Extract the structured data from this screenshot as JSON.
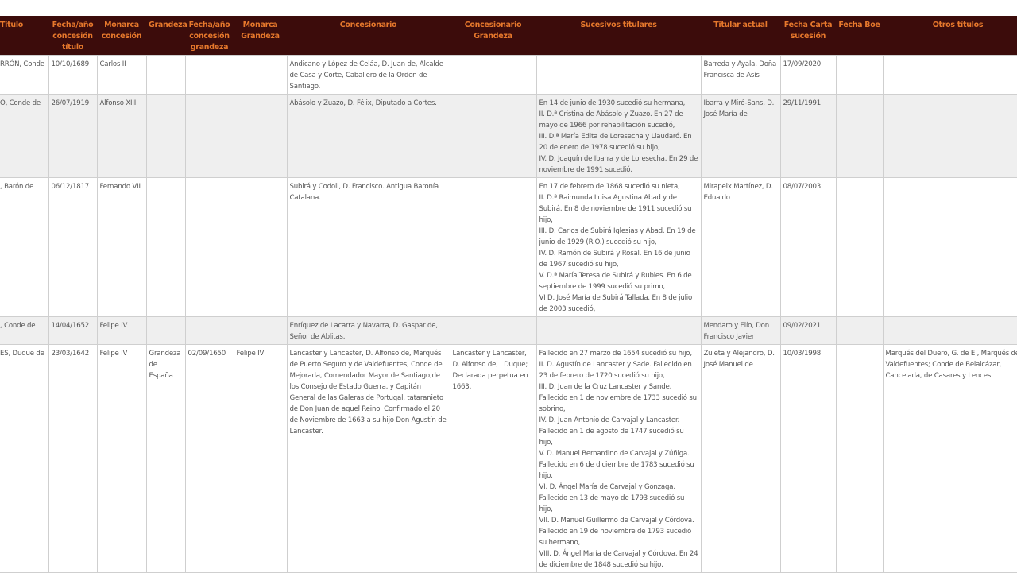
{
  "colors": {
    "header_bg": "#3c0c0b",
    "header_text": "#e6782c",
    "row_alt": "#efefef"
  },
  "headers": [
    "Título",
    "Fecha/año concesión título",
    "Monarca concesión",
    "Grandeza",
    "Fecha/año concesión grandeza",
    "Monarca Grandeza",
    "Concesionario",
    "Concesionario Grandeza",
    "Sucesivos titulares",
    "Titular actual",
    "Fecha Carta sucesión",
    "Fecha Boe",
    "Otros títulos"
  ],
  "rows": [
    [
      "RRÓN, Conde",
      "10/10/1689",
      "Carlos II",
      "",
      "",
      "",
      "Andicano y López de Celáa, D. Juan de, Alcalde de Casa y Corte, Caballero de la Orden de Santiago.",
      "",
      "",
      "Barreda y Ayala, Doña Francisca de Asís",
      "17/09/2020",
      "",
      ""
    ],
    [
      "O, Conde de",
      "26/07/1919",
      "Alfonso XIII",
      "",
      "",
      "",
      "Abásolo y Zuazo, D. Félix, Diputado a Cortes.",
      "",
      "En 14 de junio de 1930 sucedió su hermana,\nII. D.ª Cristina de Abásolo y Zuazo. En 27 de mayo de 1966 por rehabilitación sucedió,\nIII. D.ª María Edita de Loresecha y Llaudaró. En 20 de enero de 1978 sucedió su hijo,\nIV. D. Joaquín de Ibarra y de Loresecha. En 29 de noviembre de 1991 sucedió,",
      "Ibarra y Miró-Sans, D. José María de",
      "29/11/1991",
      "",
      ""
    ],
    [
      ", Barón de",
      "06/12/1817",
      "Fernando VII",
      "",
      "",
      "",
      "Subirá y Codoll, D. Francisco. Antigua Baronía Catalana.",
      "",
      "En 17 de febrero de 1868 sucedió su nieta,\nII. D.ª Raimunda Luisa Agustina Abad y de Subirá. En 8 de noviembre de 1911 sucedió su hijo,\nIII. D. Carlos de Subirá Iglesias y Abad. En 19 de junio de 1929 (R.O.) sucedió su hijo,\nIV. D. Ramón de Subirá y Rosal. En 16 de junio de 1967 sucedió su hijo,\nV. D.ª María Teresa de Subirá y Rubies. En 6 de septiembre de 1999 sucedió su primo,\nVI D. José María de Subirá Tallada. En 8 de julio de 2003 sucedió,",
      "Mirapeix Martínez, D. Edualdo",
      "08/07/2003",
      "",
      ""
    ],
    [
      ", Conde de",
      "14/04/1652",
      "Felipe IV",
      "",
      "",
      "",
      "Enríquez de Lacarra y Navarra, D. Gaspar de, Señor de Ablitas.",
      "",
      "",
      "Mendaro y Elío, Don Francisco Javier",
      "09/02/2021",
      "",
      ""
    ],
    [
      "ES, Duque de",
      "23/03/1642",
      "Felipe IV",
      "Grandeza de España",
      "02/09/1650",
      "Felipe IV",
      "Lancaster y Lancaster, D. Alfonso de, Marqués de Puerto Seguro y de Valdefuentes, Conde de Mejorada, Comendador Mayor de Santiago,de los Consejo de Estado Guerra, y Capitán General de las Galeras de Portugal, tataranieto de Don Juan de aquel Reino. Confirmado el 20 de Noviembre de 1663 a su hijo Don Agustín de Lancaster.",
      "Lancaster y Lancaster, D. Alfonso de, I Duque; Declarada perpetua en 1663.",
      "Fallecido en 27 marzo de 1654 sucedió su hijo,\nII. D. Agustín de Lancaster y Sade. Fallecido en 23 de febrero de 1720 sucedió su hijo,\nIII. D. Juan de la Cruz Lancaster y Sande. Fallecido en 1 de noviembre de 1733 sucedió su sobrino,\nIV. D. Juan Antonio de Carvajal y Lancaster. Fallecido en 1 de agosto de 1747 sucedió su hijo,\nV. D. Manuel Bernardino de Carvajal y Zúñiga. Fallecido en 6 de diciembre de 1783 sucedió su hijo,\nVI. D. Ángel María de Carvajal y Gonzaga. Fallecido en 13 de mayo de 1793 sucedió su hijo,\nVII. D. Manuel Guillermo de Carvajal y Córdova. Fallecido en 19 de noviembre de 1793 sucedió su hermano,\nVIII. D. Ángel María de Carvajal y Córdova. En 24 de diciembre de 1848 sucedió su hijo,",
      "Zuleta y Alejandro, D. José Manuel de",
      "10/03/1998",
      "",
      "Marqués del Duero, G. de E., Marqués de Valdefuentes; Conde de Belalcázar, Cancelada, de Casares y Lences."
    ]
  ]
}
